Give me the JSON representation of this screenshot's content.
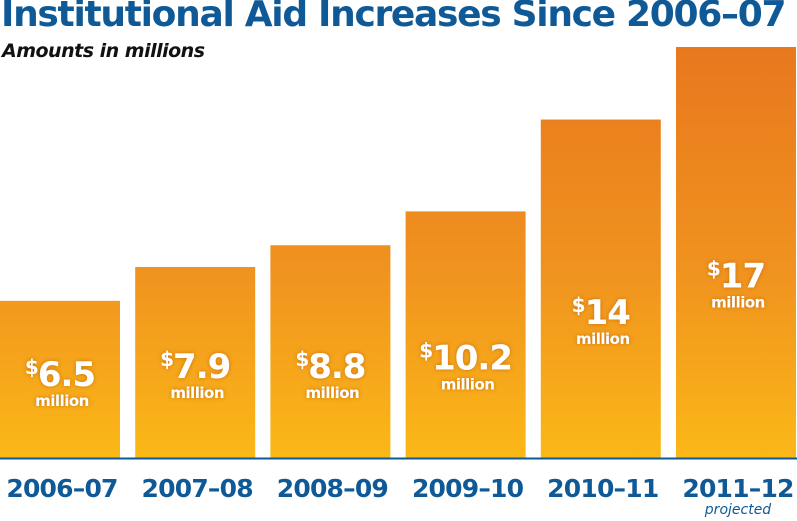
{
  "chart_data": {
    "type": "bar",
    "title": "Institutional Aid Increases Since 2006–07",
    "subtitle": "Amounts in millions",
    "xlabel": "",
    "ylabel": "",
    "categories": [
      "2006–07",
      "2007–08",
      "2008–09",
      "2009–10",
      "2010–11",
      "2011–12"
    ],
    "category_notes": [
      "",
      "",
      "",
      "",
      "",
      "projected"
    ],
    "values": [
      6.5,
      7.9,
      8.8,
      10.2,
      14,
      17
    ],
    "value_labels": [
      "6.5",
      "7.9",
      "8.8",
      "10.2",
      "14",
      "17"
    ],
    "value_prefix": "$",
    "value_unit": "million",
    "ylim": [
      0,
      17
    ],
    "grid": false,
    "legend": "none",
    "colors": {
      "bar_top": "#e8781e",
      "bar_bottom": "#fbb817",
      "axis": "#0f5a96",
      "title": "#0f5a96",
      "label_text": "#ffffff"
    }
  }
}
